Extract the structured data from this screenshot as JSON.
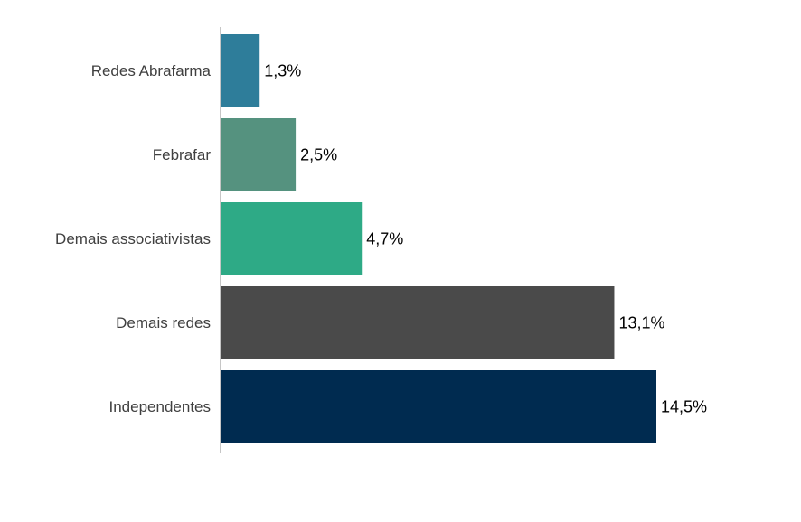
{
  "chart_data": {
    "type": "bar",
    "orientation": "horizontal",
    "categories": [
      "Redes Abrafarma",
      "Febrafar",
      "Demais associativistas",
      "Demais redes",
      "Independentes"
    ],
    "values": [
      1.3,
      2.5,
      4.7,
      13.1,
      14.5
    ],
    "value_labels": [
      "1,3%",
      "2,5%",
      "4,7%",
      "13,1%",
      "14,5%"
    ],
    "colors": [
      "#2e7d9a",
      "#55927f",
      "#2eaa86",
      "#4a4a4a",
      "#002b50"
    ],
    "title": "",
    "xlabel": "",
    "ylabel": "",
    "xlim": [
      0,
      16
    ],
    "grid": false,
    "legend": "none"
  }
}
